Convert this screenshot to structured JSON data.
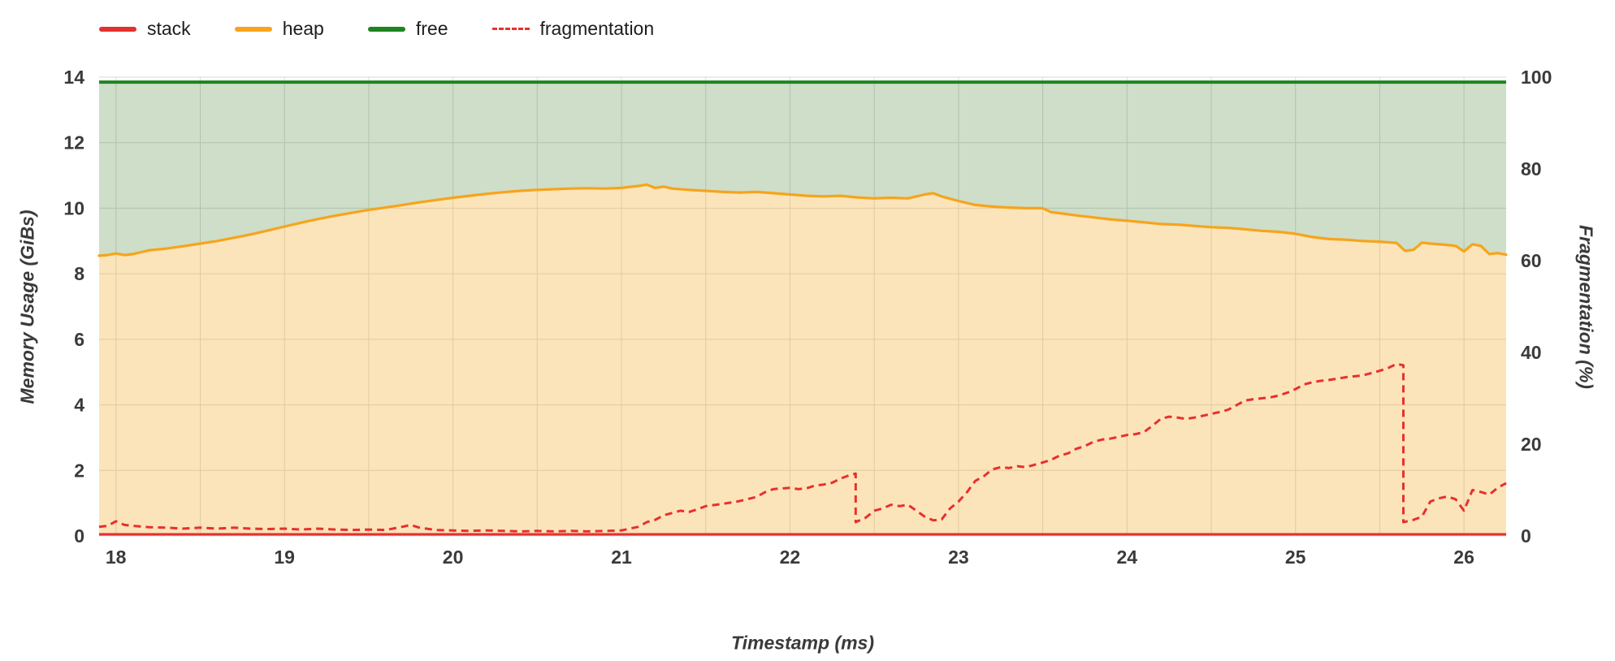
{
  "chart_data": {
    "type": "area",
    "title": "",
    "xlabel": "Timestamp (ms)",
    "ylabel_left": "Memory Usage (GiBs)",
    "ylabel_right": "Fragmentation (%)",
    "xlim": [
      17.9,
      26.25
    ],
    "ylim_left": [
      0,
      14
    ],
    "ylim_right": [
      0,
      100
    ],
    "x_ticks": [
      18,
      19,
      20,
      21,
      22,
      23,
      24,
      25,
      26
    ],
    "y_ticks_left": [
      0,
      2,
      4,
      6,
      8,
      10,
      12,
      14
    ],
    "y_ticks_right": [
      0,
      20,
      40,
      60,
      80,
      100
    ],
    "grid": true,
    "legend_position": "top-left",
    "colors": {
      "stack_line": "#e33030",
      "heap_line": "#f6a41c",
      "heap_fill": "rgba(246,164,28,0.30)",
      "free_line": "#1e8420",
      "free_fill": "rgba(58,125,40,0.25)",
      "fragmentation_line": "#e8302e",
      "grid": "#dadada",
      "axis_text": "#3a3a3a"
    },
    "legend": [
      {
        "label": "stack",
        "color": "#e33030",
        "style": "area"
      },
      {
        "label": "heap",
        "color": "#f6a41c",
        "style": "area"
      },
      {
        "label": "free",
        "color": "#1e8420",
        "style": "area"
      },
      {
        "label": "fragmentation",
        "color": "#e8302e",
        "style": "dashed"
      }
    ],
    "free_total_gib": 13.85,
    "stack_gib": 0.05,
    "heap_series": [
      [
        17.9,
        8.55
      ],
      [
        17.95,
        8.57
      ],
      [
        18.0,
        8.62
      ],
      [
        18.05,
        8.57
      ],
      [
        18.1,
        8.6
      ],
      [
        18.15,
        8.66
      ],
      [
        18.2,
        8.72
      ],
      [
        18.3,
        8.77
      ],
      [
        18.4,
        8.84
      ],
      [
        18.5,
        8.92
      ],
      [
        18.6,
        9.0
      ],
      [
        18.7,
        9.1
      ],
      [
        18.8,
        9.2
      ],
      [
        18.9,
        9.32
      ],
      [
        19.0,
        9.44
      ],
      [
        19.1,
        9.56
      ],
      [
        19.2,
        9.67
      ],
      [
        19.3,
        9.77
      ],
      [
        19.4,
        9.86
      ],
      [
        19.5,
        9.95
      ],
      [
        19.6,
        10.02
      ],
      [
        19.7,
        10.1
      ],
      [
        19.8,
        10.18
      ],
      [
        19.9,
        10.25
      ],
      [
        20.0,
        10.32
      ],
      [
        20.1,
        10.38
      ],
      [
        20.2,
        10.44
      ],
      [
        20.3,
        10.49
      ],
      [
        20.4,
        10.53
      ],
      [
        20.5,
        10.56
      ],
      [
        20.6,
        10.58
      ],
      [
        20.7,
        10.6
      ],
      [
        20.8,
        10.61
      ],
      [
        20.9,
        10.6
      ],
      [
        21.0,
        10.62
      ],
      [
        21.1,
        10.68
      ],
      [
        21.15,
        10.72
      ],
      [
        21.2,
        10.62
      ],
      [
        21.25,
        10.66
      ],
      [
        21.3,
        10.6
      ],
      [
        21.4,
        10.56
      ],
      [
        21.5,
        10.53
      ],
      [
        21.6,
        10.5
      ],
      [
        21.7,
        10.48
      ],
      [
        21.8,
        10.5
      ],
      [
        21.9,
        10.46
      ],
      [
        22.0,
        10.42
      ],
      [
        22.1,
        10.38
      ],
      [
        22.2,
        10.36
      ],
      [
        22.3,
        10.38
      ],
      [
        22.4,
        10.33
      ],
      [
        22.5,
        10.3
      ],
      [
        22.6,
        10.32
      ],
      [
        22.7,
        10.3
      ],
      [
        22.8,
        10.42
      ],
      [
        22.85,
        10.46
      ],
      [
        22.9,
        10.36
      ],
      [
        23.0,
        10.22
      ],
      [
        23.1,
        10.1
      ],
      [
        23.2,
        10.05
      ],
      [
        23.3,
        10.02
      ],
      [
        23.4,
        10.0
      ],
      [
        23.5,
        10.0
      ],
      [
        23.55,
        9.88
      ],
      [
        23.6,
        9.85
      ],
      [
        23.7,
        9.78
      ],
      [
        23.8,
        9.72
      ],
      [
        23.9,
        9.66
      ],
      [
        24.0,
        9.62
      ],
      [
        24.1,
        9.57
      ],
      [
        24.2,
        9.52
      ],
      [
        24.3,
        9.5
      ],
      [
        24.4,
        9.46
      ],
      [
        24.5,
        9.42
      ],
      [
        24.6,
        9.4
      ],
      [
        24.7,
        9.36
      ],
      [
        24.8,
        9.31
      ],
      [
        24.9,
        9.28
      ],
      [
        25.0,
        9.22
      ],
      [
        25.1,
        9.12
      ],
      [
        25.2,
        9.06
      ],
      [
        25.3,
        9.04
      ],
      [
        25.4,
        9.0
      ],
      [
        25.5,
        8.98
      ],
      [
        25.6,
        8.94
      ],
      [
        25.65,
        8.7
      ],
      [
        25.7,
        8.73
      ],
      [
        25.75,
        8.95
      ],
      [
        25.8,
        8.92
      ],
      [
        25.9,
        8.88
      ],
      [
        25.95,
        8.85
      ],
      [
        26.0,
        8.68
      ],
      [
        26.05,
        8.9
      ],
      [
        26.1,
        8.85
      ],
      [
        26.15,
        8.6
      ],
      [
        26.2,
        8.63
      ],
      [
        26.25,
        8.58
      ]
    ],
    "fragmentation_series": [
      [
        17.9,
        2.0
      ],
      [
        17.95,
        2.2
      ],
      [
        18.0,
        3.2
      ],
      [
        18.05,
        2.4
      ],
      [
        18.1,
        2.2
      ],
      [
        18.2,
        1.9
      ],
      [
        18.3,
        1.8
      ],
      [
        18.4,
        1.6
      ],
      [
        18.5,
        1.8
      ],
      [
        18.6,
        1.6
      ],
      [
        18.7,
        1.8
      ],
      [
        18.8,
        1.6
      ],
      [
        18.9,
        1.5
      ],
      [
        19.0,
        1.6
      ],
      [
        19.1,
        1.4
      ],
      [
        19.2,
        1.6
      ],
      [
        19.3,
        1.4
      ],
      [
        19.4,
        1.3
      ],
      [
        19.5,
        1.4
      ],
      [
        19.6,
        1.3
      ],
      [
        19.7,
        2.0
      ],
      [
        19.75,
        2.4
      ],
      [
        19.8,
        1.8
      ],
      [
        19.9,
        1.3
      ],
      [
        20.0,
        1.2
      ],
      [
        20.1,
        1.1
      ],
      [
        20.2,
        1.2
      ],
      [
        20.3,
        1.1
      ],
      [
        20.4,
        1.0
      ],
      [
        20.5,
        1.1
      ],
      [
        20.6,
        1.0
      ],
      [
        20.7,
        1.1
      ],
      [
        20.8,
        1.0
      ],
      [
        20.9,
        1.1
      ],
      [
        21.0,
        1.2
      ],
      [
        21.1,
        2.0
      ],
      [
        21.15,
        3.0
      ],
      [
        21.2,
        3.5
      ],
      [
        21.25,
        4.5
      ],
      [
        21.3,
        5.0
      ],
      [
        21.35,
        5.5
      ],
      [
        21.4,
        5.2
      ],
      [
        21.45,
        5.8
      ],
      [
        21.5,
        6.5
      ],
      [
        21.6,
        7.0
      ],
      [
        21.7,
        7.6
      ],
      [
        21.8,
        8.5
      ],
      [
        21.85,
        9.5
      ],
      [
        21.9,
        10.2
      ],
      [
        22.0,
        10.5
      ],
      [
        22.05,
        10.2
      ],
      [
        22.1,
        10.4
      ],
      [
        22.15,
        11.0
      ],
      [
        22.2,
        11.2
      ],
      [
        22.25,
        11.6
      ],
      [
        22.3,
        12.5
      ],
      [
        22.35,
        13.2
      ],
      [
        22.39,
        13.6
      ],
      [
        22.39,
        3.0
      ],
      [
        22.45,
        4.0
      ],
      [
        22.5,
        5.5
      ],
      [
        22.55,
        6.0
      ],
      [
        22.6,
        6.8
      ],
      [
        22.65,
        6.5
      ],
      [
        22.7,
        6.8
      ],
      [
        22.75,
        5.5
      ],
      [
        22.8,
        4.2
      ],
      [
        22.85,
        3.4
      ],
      [
        22.9,
        3.6
      ],
      [
        22.95,
        6.0
      ],
      [
        23.0,
        7.5
      ],
      [
        23.05,
        9.5
      ],
      [
        23.1,
        12.0
      ],
      [
        23.15,
        13.0
      ],
      [
        23.2,
        14.5
      ],
      [
        23.25,
        15.0
      ],
      [
        23.3,
        14.8
      ],
      [
        23.35,
        15.2
      ],
      [
        23.4,
        15.0
      ],
      [
        23.45,
        15.5
      ],
      [
        23.5,
        16.0
      ],
      [
        23.55,
        16.6
      ],
      [
        23.6,
        17.5
      ],
      [
        23.65,
        18.0
      ],
      [
        23.7,
        19.0
      ],
      [
        23.75,
        19.6
      ],
      [
        23.8,
        20.5
      ],
      [
        23.85,
        21.0
      ],
      [
        23.9,
        21.2
      ],
      [
        23.95,
        21.6
      ],
      [
        24.0,
        22.0
      ],
      [
        24.05,
        22.2
      ],
      [
        24.1,
        22.6
      ],
      [
        24.15,
        24.0
      ],
      [
        24.2,
        25.5
      ],
      [
        24.25,
        26.0
      ],
      [
        24.3,
        25.8
      ],
      [
        24.35,
        25.5
      ],
      [
        24.4,
        25.8
      ],
      [
        24.45,
        26.2
      ],
      [
        24.5,
        26.6
      ],
      [
        24.55,
        27.0
      ],
      [
        24.6,
        27.5
      ],
      [
        24.65,
        28.5
      ],
      [
        24.7,
        29.5
      ],
      [
        24.75,
        29.8
      ],
      [
        24.8,
        30.0
      ],
      [
        24.85,
        30.2
      ],
      [
        24.9,
        30.6
      ],
      [
        24.95,
        31.2
      ],
      [
        25.0,
        32.0
      ],
      [
        25.05,
        33.0
      ],
      [
        25.1,
        33.5
      ],
      [
        25.15,
        33.8
      ],
      [
        25.2,
        34.0
      ],
      [
        25.25,
        34.3
      ],
      [
        25.3,
        34.6
      ],
      [
        25.35,
        34.8
      ],
      [
        25.4,
        35.0
      ],
      [
        25.45,
        35.5
      ],
      [
        25.5,
        36.0
      ],
      [
        25.55,
        36.6
      ],
      [
        25.6,
        37.5
      ],
      [
        25.64,
        37.2
      ],
      [
        25.64,
        3.0
      ],
      [
        25.7,
        3.5
      ],
      [
        25.75,
        4.2
      ],
      [
        25.8,
        7.5
      ],
      [
        25.85,
        8.2
      ],
      [
        25.9,
        8.6
      ],
      [
        25.95,
        8.0
      ],
      [
        26.0,
        5.5
      ],
      [
        26.05,
        10.0
      ],
      [
        26.1,
        9.6
      ],
      [
        26.15,
        9.0
      ],
      [
        26.2,
        10.5
      ],
      [
        26.25,
        11.5
      ]
    ]
  }
}
